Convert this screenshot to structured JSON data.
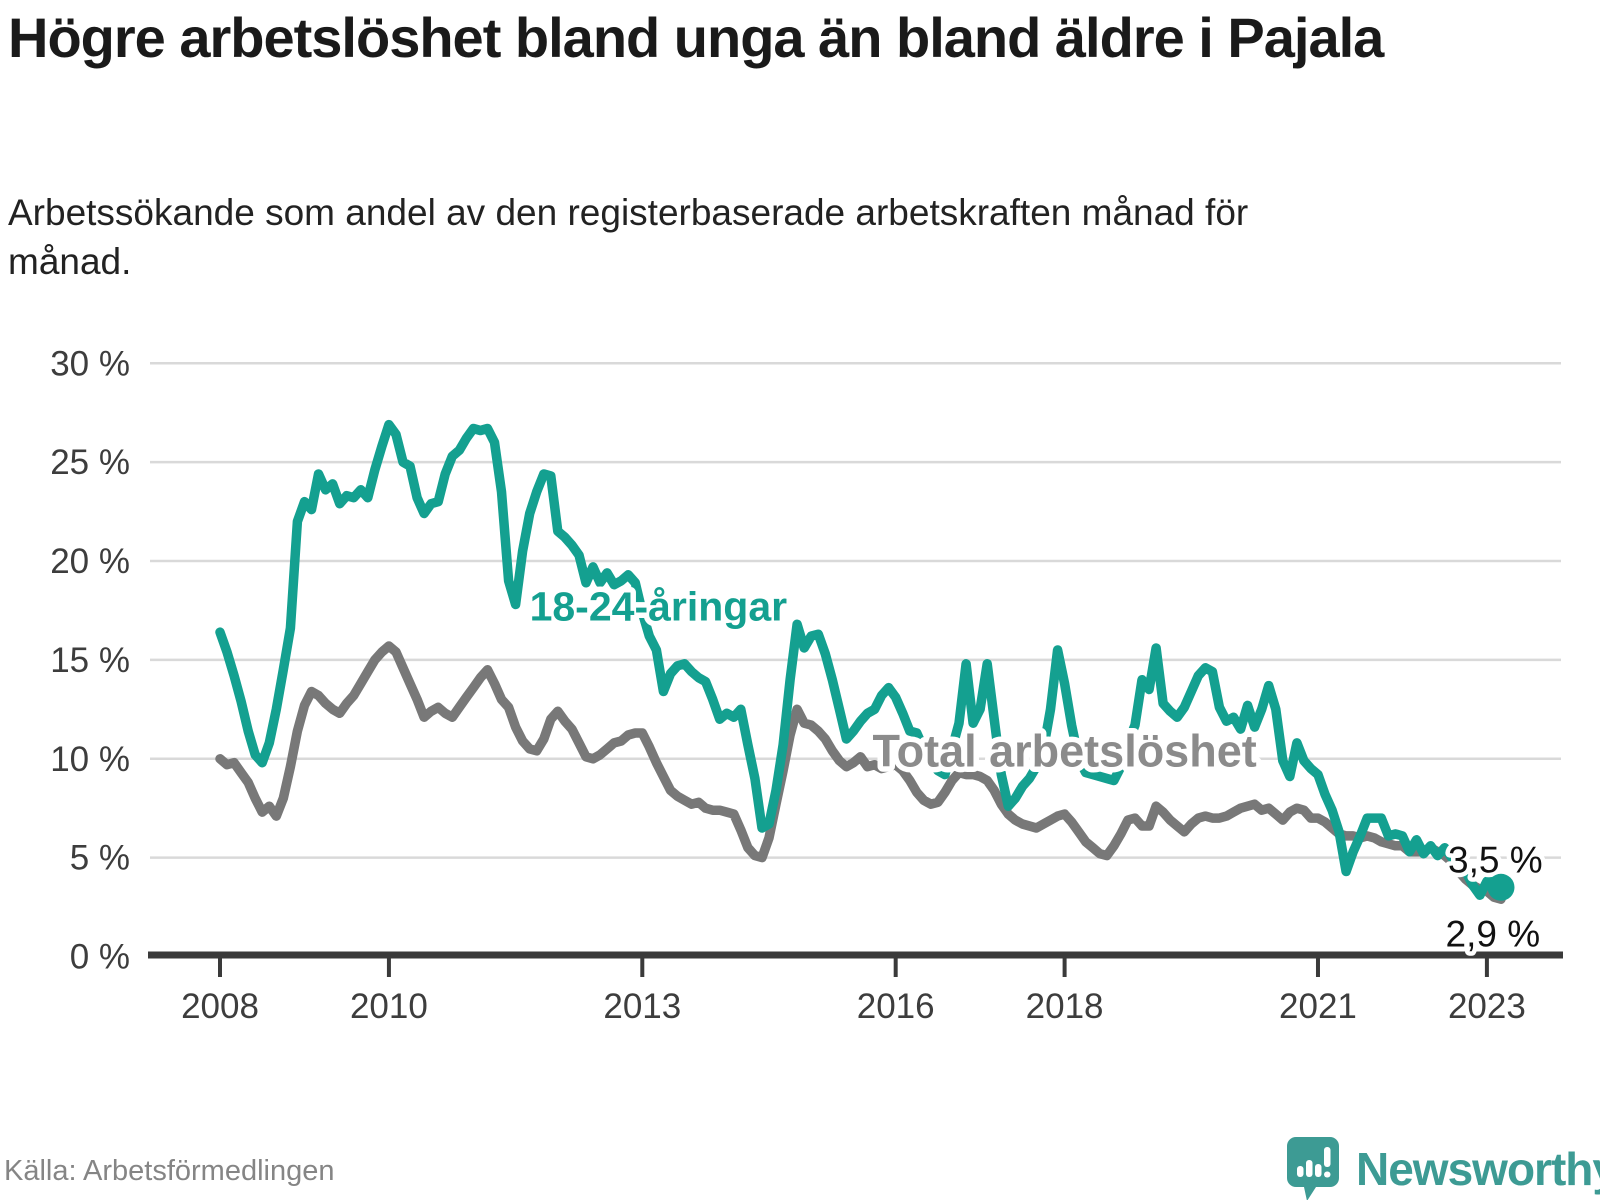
{
  "title": "Högre arbetslöshet bland unga än bland äldre i Pajala",
  "subtitle": "Arbetssökande som andel av den registerbaserade arbetskraften månad för månad.",
  "source": "Källa: Arbetsförmedlingen",
  "branding": {
    "name": "Newsworthy",
    "icon": "newsworthy-speech-bubble-chart-icon"
  },
  "colors": {
    "youth_line": "#14a090",
    "total_line": "#787878",
    "total_label": "#8b8b8b",
    "gridline": "#d9d9d9",
    "axis": "#3a3a3a",
    "tick_text": "#3d3d3d",
    "value_label_text": "#111111",
    "logo_teal": "#3d9b94"
  },
  "chart_data": {
    "type": "line",
    "title": "Högre arbetslöshet bland unga än bland äldre i Pajala",
    "xlabel": "",
    "ylabel": "",
    "grid": true,
    "legend_position": "inline-labels",
    "ylim": [
      0,
      30
    ],
    "xlim": [
      2007.2,
      2023.9
    ],
    "x_start_year": 2008,
    "x_step_months": 1,
    "x_end": "2023-03",
    "x_ticks": [
      2008,
      2010,
      2013,
      2016,
      2018,
      2021,
      2023
    ],
    "y_ticks": [
      {
        "value": 0,
        "label": "0 %"
      },
      {
        "value": 5,
        "label": "5 %"
      },
      {
        "value": 10,
        "label": "10 %"
      },
      {
        "value": 15,
        "label": "15 %"
      },
      {
        "value": 20,
        "label": "20 %"
      },
      {
        "value": 25,
        "label": "25 %"
      },
      {
        "value": 30,
        "label": "30 %"
      }
    ],
    "series": [
      {
        "name": "Total arbetslöshet",
        "color": "#787878",
        "end_dot": false,
        "values": [
          10.0,
          9.7,
          9.8,
          9.3,
          8.8,
          8.0,
          7.3,
          7.6,
          7.1,
          8.0,
          9.6,
          11.4,
          12.7,
          13.4,
          13.2,
          12.8,
          12.5,
          12.3,
          12.8,
          13.2,
          13.8,
          14.4,
          15.0,
          15.4,
          15.7,
          15.4,
          14.6,
          13.8,
          13.0,
          12.1,
          12.4,
          12.6,
          12.3,
          12.1,
          12.6,
          13.1,
          13.6,
          14.1,
          14.5,
          13.8,
          13.0,
          12.6,
          11.6,
          10.9,
          10.5,
          10.4,
          11.0,
          12.0,
          12.4,
          11.9,
          11.5,
          10.8,
          10.1,
          10.0,
          10.2,
          10.5,
          10.8,
          10.9,
          11.2,
          11.3,
          11.3,
          10.6,
          9.8,
          9.1,
          8.4,
          8.1,
          7.9,
          7.7,
          7.8,
          7.5,
          7.4,
          7.4,
          7.3,
          7.2,
          6.4,
          5.5,
          5.1,
          5.0,
          6.0,
          7.7,
          9.4,
          11.2,
          12.5,
          11.8,
          11.7,
          11.4,
          11.0,
          10.4,
          9.9,
          9.6,
          9.8,
          10.1,
          9.6,
          9.7,
          9.5,
          9.6,
          9.7,
          9.4,
          8.9,
          8.3,
          7.9,
          7.7,
          7.8,
          8.3,
          8.9,
          9.3,
          9.2,
          9.2,
          9.1,
          8.9,
          8.4,
          7.7,
          7.2,
          6.9,
          6.7,
          6.6,
          6.5,
          6.7,
          6.9,
          7.1,
          7.2,
          6.8,
          6.3,
          5.8,
          5.5,
          5.2,
          5.1,
          5.6,
          6.2,
          6.9,
          7.0,
          6.6,
          6.6,
          7.6,
          7.3,
          6.9,
          6.6,
          6.3,
          6.7,
          7.0,
          7.1,
          7.0,
          7.0,
          7.1,
          7.3,
          7.5,
          7.6,
          7.7,
          7.4,
          7.5,
          7.2,
          6.9,
          7.3,
          7.5,
          7.4,
          7.0,
          7.0,
          6.8,
          6.5,
          6.2,
          6.1,
          6.1,
          6.0,
          6.1,
          6.0,
          5.8,
          5.7,
          5.6,
          5.6,
          5.3,
          5.3,
          5.3,
          5.5,
          5.3,
          5.1,
          4.8,
          4.3,
          3.9,
          3.6,
          3.4,
          3.3,
          3.0,
          2.9
        ]
      },
      {
        "name": "18-24-åringar",
        "color": "#14a090",
        "end_dot": true,
        "values": [
          16.4,
          15.4,
          14.2,
          12.9,
          11.4,
          10.2,
          9.8,
          10.8,
          12.5,
          14.5,
          16.6,
          22.0,
          23.0,
          22.6,
          24.4,
          23.6,
          23.9,
          22.9,
          23.3,
          23.2,
          23.6,
          23.2,
          24.6,
          25.8,
          26.9,
          26.4,
          25.0,
          24.8,
          23.2,
          22.4,
          22.9,
          23.0,
          24.4,
          25.3,
          25.6,
          26.2,
          26.7,
          26.6,
          26.7,
          26.0,
          23.5,
          19.0,
          17.8,
          20.5,
          22.4,
          23.5,
          24.4,
          24.3,
          21.5,
          21.2,
          20.8,
          20.3,
          18.9,
          19.7,
          18.9,
          19.4,
          18.8,
          19.0,
          19.3,
          18.9,
          17.4,
          16.2,
          15.5,
          13.4,
          14.3,
          14.7,
          14.8,
          14.4,
          14.1,
          13.9,
          13.0,
          12.0,
          12.3,
          12.1,
          12.5,
          10.7,
          9.0,
          6.5,
          6.7,
          8.4,
          10.7,
          14.0,
          16.8,
          15.6,
          16.2,
          16.3,
          15.3,
          14.0,
          12.5,
          11.0,
          11.4,
          11.9,
          12.3,
          12.5,
          13.2,
          13.6,
          13.1,
          12.3,
          11.4,
          11.3,
          10.5,
          9.8,
          9.4,
          9.2,
          10.5,
          11.8,
          14.8,
          11.8,
          12.5,
          14.8,
          12.0,
          9.2,
          7.6,
          8.0,
          8.6,
          9.0,
          9.6,
          10.5,
          12.5,
          15.5,
          13.8,
          11.7,
          10.0,
          9.3,
          9.2,
          9.1,
          9.0,
          8.9,
          9.6,
          10.8,
          11.7,
          14.0,
          13.5,
          15.6,
          12.8,
          12.4,
          12.1,
          12.6,
          13.4,
          14.2,
          14.6,
          14.4,
          12.6,
          11.9,
          12.1,
          11.5,
          12.7,
          11.6,
          12.5,
          13.7,
          12.5,
          9.9,
          9.1,
          10.8,
          9.9,
          9.5,
          9.2,
          8.2,
          7.4,
          6.3,
          4.3,
          5.3,
          6.1,
          7.0,
          7.0,
          7.0,
          6.1,
          6.2,
          6.1,
          5.3,
          5.9,
          5.2,
          5.6,
          5.1,
          5.5,
          5.0,
          5.3,
          4.3,
          3.6,
          3.1,
          3.8,
          4.0,
          3.5
        ]
      }
    ],
    "series_labels": [
      {
        "text": "18-24-åringar",
        "t": 2013.19,
        "value": 17.0,
        "color": "#14a090",
        "font_size": 41
      },
      {
        "text": "Total arbetslöshet",
        "t": 2018.0,
        "value": 9.6,
        "color": "#8b8b8b",
        "font_size": 45
      }
    ],
    "end_value_labels": [
      {
        "text": "3,5 %",
        "series": "18-24-åringar",
        "t": 2022.54,
        "value": 4.25
      },
      {
        "text": "2,9 %",
        "series": "Total arbetslöshet",
        "t": 2022.51,
        "value": 0.5
      }
    ]
  }
}
